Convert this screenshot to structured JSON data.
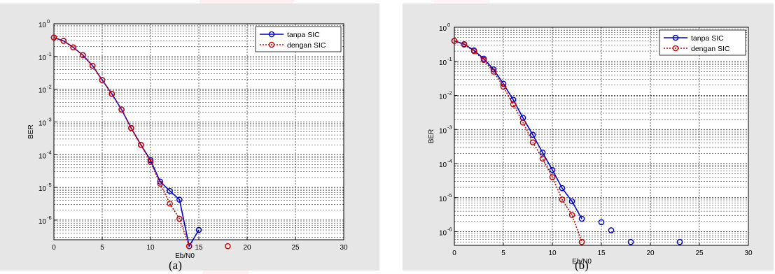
{
  "chart_data": [
    {
      "type": "line",
      "panel_label": "(a)",
      "xlabel": "Eb/N0",
      "ylabel": "BER",
      "xlim": [
        0,
        30
      ],
      "ylim_log10": [
        -6.6,
        0
      ],
      "y_scale": "log",
      "x_ticks": [
        "0",
        "5",
        "10",
        "15",
        "20",
        "25",
        "30"
      ],
      "y_ticks": [
        {
          "base": "10",
          "exp": "0"
        },
        {
          "base": "10",
          "exp": "-1"
        },
        {
          "base": "10",
          "exp": "-2"
        },
        {
          "base": "10",
          "exp": "-3"
        },
        {
          "base": "10",
          "exp": "-4"
        },
        {
          "base": "10",
          "exp": "-5"
        },
        {
          "base": "10",
          "exp": "-6"
        }
      ],
      "grid": true,
      "legend_position": "top-right",
      "series": [
        {
          "name": "tanpa SIC",
          "color": "#0000cc",
          "style": "solid",
          "x": [
            0,
            1,
            2,
            3,
            4,
            5,
            6,
            7,
            8,
            9,
            10,
            11,
            12,
            13,
            14,
            15
          ],
          "y": [
            0.38,
            0.3,
            0.19,
            0.11,
            0.052,
            0.019,
            0.0072,
            0.0024,
            0.00065,
            0.0002,
            6.8e-05,
            1.5e-05,
            7.8e-06,
            4.2e-06,
            1.6e-07,
            5e-07
          ],
          "segments": [
            [
              0,
              15
            ]
          ]
        },
        {
          "name": "dengan SIC",
          "color": "#cc0000",
          "style": "dotted",
          "x": [
            0,
            1,
            2,
            3,
            4,
            5,
            6,
            7,
            8,
            9,
            10,
            11,
            12,
            13,
            14,
            18
          ],
          "y": [
            0.38,
            0.3,
            0.19,
            0.11,
            0.052,
            0.019,
            0.0072,
            0.0024,
            0.00065,
            0.0002,
            6e-05,
            1.3e-05,
            3.2e-06,
            1.1e-06,
            1.6e-07,
            1.6e-07
          ],
          "segments": [
            [
              0,
              14
            ]
          ]
        }
      ]
    },
    {
      "type": "line",
      "panel_label": "(b)",
      "xlabel": "Eb/N0",
      "ylabel": "BER",
      "xlim": [
        0,
        30
      ],
      "ylim_log10": [
        -6.4,
        0
      ],
      "y_scale": "log",
      "x_ticks": [
        "0",
        "5",
        "10",
        "15",
        "20",
        "25",
        "30"
      ],
      "y_ticks": [
        {
          "base": "10",
          "exp": "0"
        },
        {
          "base": "10",
          "exp": "-1"
        },
        {
          "base": "10",
          "exp": "-2"
        },
        {
          "base": "10",
          "exp": "-3"
        },
        {
          "base": "10",
          "exp": "-4"
        },
        {
          "base": "10",
          "exp": "-5"
        },
        {
          "base": "10",
          "exp": "-6"
        }
      ],
      "grid": true,
      "legend_position": "top-right",
      "series": [
        {
          "name": "tanpa SIC",
          "color": "#0000cc",
          "style": "solid",
          "x": [
            0,
            1,
            2,
            3,
            4,
            5,
            6,
            7,
            8,
            9,
            10,
            11,
            12,
            13,
            15,
            16,
            18,
            23
          ],
          "y": [
            0.4,
            0.32,
            0.21,
            0.12,
            0.058,
            0.022,
            0.0075,
            0.0022,
            0.0007,
            0.00021,
            6.5e-05,
            1.9e-05,
            7.8e-06,
            2.4e-06,
            1.9e-06,
            1.1e-06,
            5e-07,
            5e-07
          ],
          "segments": [
            [
              0,
              13
            ]
          ]
        },
        {
          "name": "dengan SIC",
          "color": "#cc0000",
          "style": "dotted",
          "x": [
            0,
            1,
            2,
            3,
            4,
            5,
            6,
            7,
            8,
            9,
            10,
            11,
            12,
            13
          ],
          "y": [
            0.4,
            0.31,
            0.2,
            0.11,
            0.05,
            0.018,
            0.0055,
            0.0016,
            0.00042,
            0.00014,
            4e-05,
            8.8e-06,
            3.1e-06,
            5e-07
          ],
          "segments": [
            [
              0,
              13
            ]
          ]
        }
      ]
    }
  ]
}
